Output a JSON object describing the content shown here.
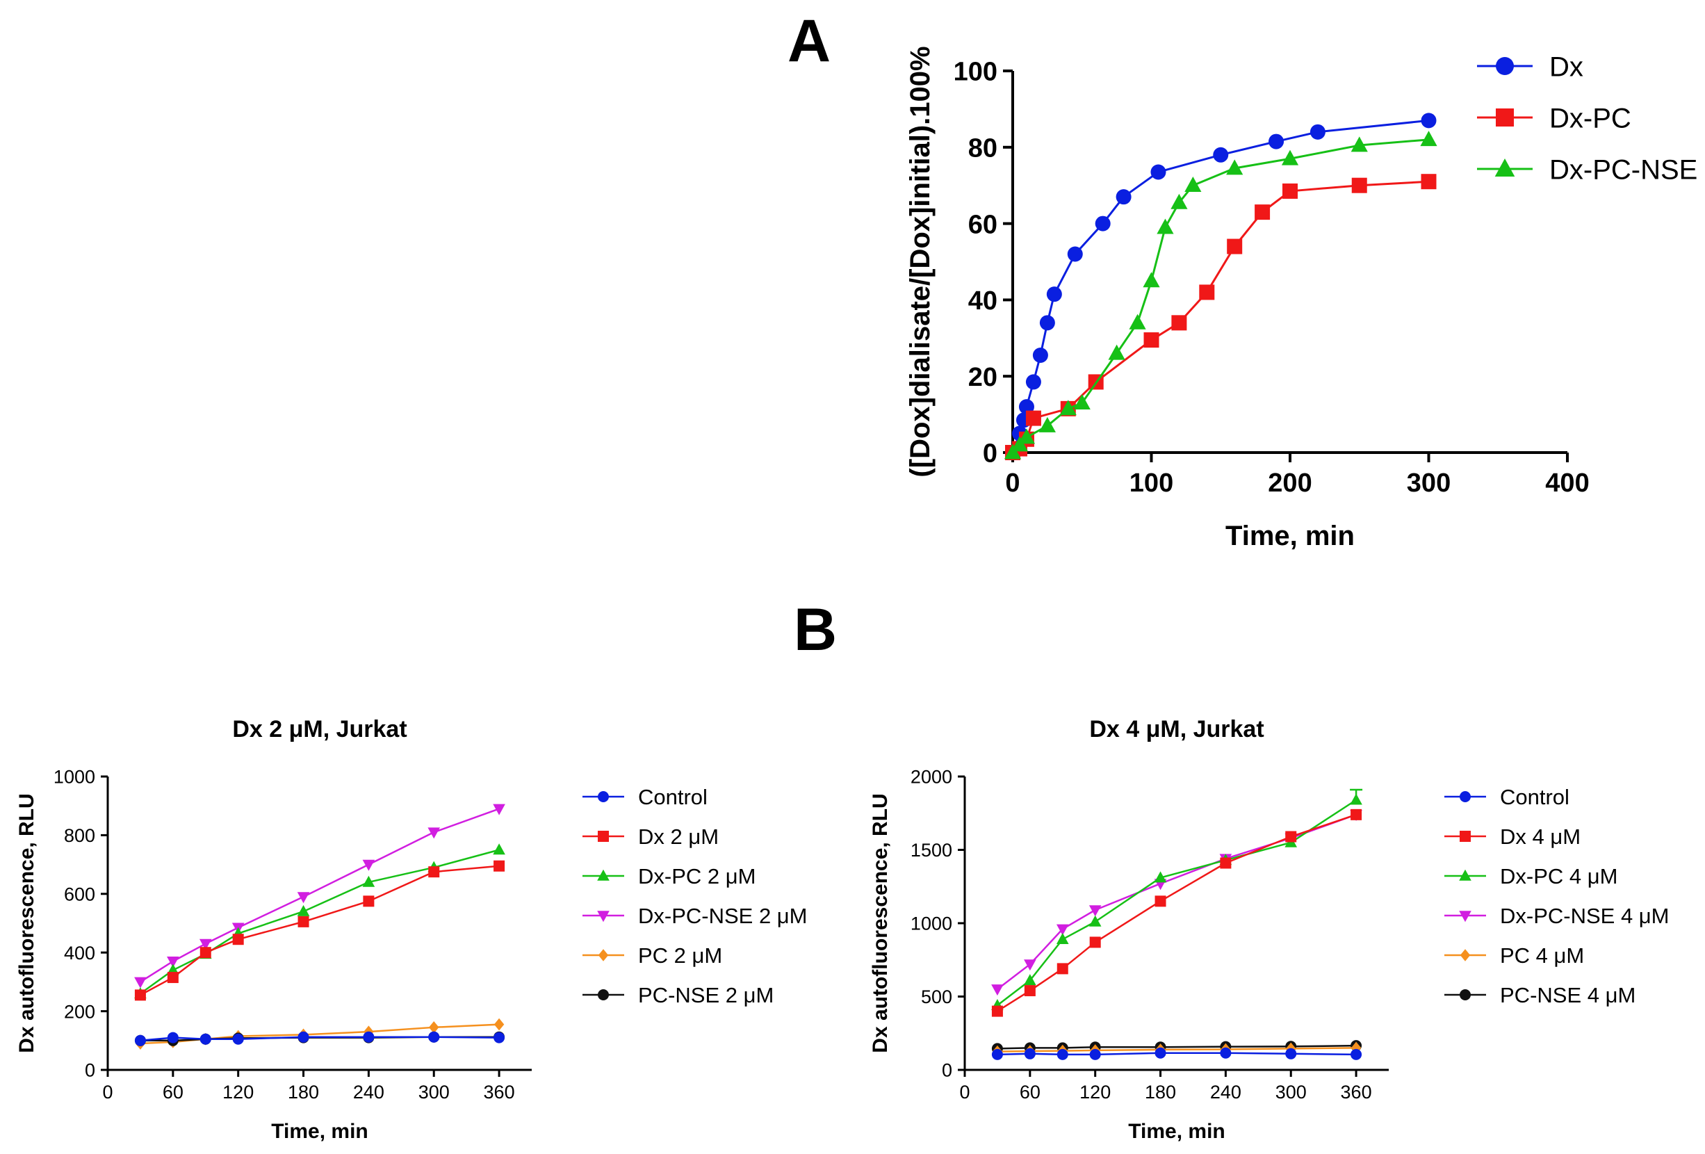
{
  "panel_labels": {
    "a": "A",
    "b": "B"
  },
  "chart_data": [
    {
      "id": "A",
      "type": "line",
      "title": "",
      "xlabel": "Time, min",
      "ylabel": "([Dox]dialisate/[Dox]initial).100%",
      "xlim": [
        0,
        400
      ],
      "ylim": [
        0,
        100
      ],
      "xticks": [
        0,
        100,
        200,
        300,
        400
      ],
      "yticks": [
        0,
        20,
        40,
        60,
        80,
        100
      ],
      "grid": false,
      "legend_position": "right",
      "series": [
        {
          "name": "Dx",
          "color": "#0a1fe0",
          "marker": "circle",
          "x": [
            0,
            5,
            8,
            10,
            15,
            20,
            25,
            30,
            45,
            65,
            80,
            105,
            150,
            190,
            220,
            300
          ],
          "y": [
            0,
            5,
            8.5,
            12,
            18.5,
            25.5,
            34,
            41.5,
            52,
            60,
            67,
            73.5,
            78,
            81.5,
            84,
            87
          ]
        },
        {
          "name": "Dx-PC",
          "color": "#f01818",
          "marker": "square",
          "x": [
            0,
            5,
            10,
            15,
            40,
            60,
            100,
            120,
            140,
            160,
            180,
            200,
            250,
            300
          ],
          "y": [
            0,
            1,
            3.5,
            9,
            11.5,
            18.5,
            29.5,
            34,
            42,
            54,
            63,
            68.5,
            70,
            71
          ]
        },
        {
          "name": "Dx-PC-NSE",
          "color": "#16c016",
          "marker": "triangle",
          "x": [
            0,
            5,
            10,
            25,
            40,
            50,
            75,
            90,
            100,
            110,
            120,
            130,
            160,
            200,
            250,
            300
          ],
          "y": [
            0,
            2,
            4,
            7,
            11.5,
            13,
            26,
            34,
            45,
            59,
            65.5,
            70,
            74.5,
            77,
            80.5,
            82
          ]
        }
      ]
    },
    {
      "id": "B1",
      "type": "line",
      "title": "Dx 2 μM, Jurkat",
      "xlabel": "Time, min",
      "ylabel": "Dx autofluorescence, RLU",
      "xlim": [
        0,
        390
      ],
      "ylim": [
        0,
        1000
      ],
      "xticks": [
        0,
        60,
        120,
        180,
        240,
        300,
        360
      ],
      "yticks": [
        0,
        200,
        400,
        600,
        800,
        1000
      ],
      "grid": false,
      "legend_position": "right",
      "x": [
        30,
        60,
        90,
        120,
        180,
        240,
        300,
        360
      ],
      "series": [
        {
          "name": "Dx-PC-NSE 2 μM",
          "color": "#d11ee0",
          "marker": "triangle-down",
          "legend_order": 3,
          "values": [
            300,
            370,
            430,
            485,
            590,
            700,
            810,
            890
          ]
        },
        {
          "name": "Dx-PC 2 μM",
          "color": "#16c016",
          "marker": "triangle",
          "legend_order": 2,
          "values": [
            260,
            340,
            395,
            465,
            540,
            640,
            690,
            750
          ]
        },
        {
          "name": "Dx 2 μM",
          "color": "#f01818",
          "marker": "square",
          "legend_order": 1,
          "values": [
            255,
            315,
            400,
            445,
            505,
            575,
            675,
            695
          ]
        },
        {
          "name": "PC 2 μM",
          "color": "#f5901e",
          "marker": "diamond",
          "legend_order": 4,
          "values": [
            90,
            95,
            105,
            115,
            120,
            130,
            145,
            155
          ]
        },
        {
          "name": "PC-NSE 2 μM",
          "color": "#111111",
          "marker": "circle",
          "legend_order": 5,
          "values": [
            100,
            100,
            105,
            108,
            110,
            110,
            112,
            112
          ]
        },
        {
          "name": "Control",
          "color": "#0a1fe0",
          "marker": "circle",
          "legend_order": 0,
          "values": [
            100,
            110,
            105,
            105,
            112,
            112,
            112,
            110
          ]
        }
      ]
    },
    {
      "id": "B2",
      "type": "line",
      "title": "Dx 4 μM, Jurkat",
      "xlabel": "Time, min",
      "ylabel": "Dx autofluorescence, RLU",
      "xlim": [
        0,
        390
      ],
      "ylim": [
        0,
        2000
      ],
      "xticks": [
        0,
        60,
        120,
        180,
        240,
        300,
        360
      ],
      "yticks": [
        0,
        500,
        1000,
        1500,
        2000
      ],
      "grid": false,
      "legend_position": "right",
      "x": [
        30,
        60,
        90,
        120,
        180,
        240,
        300,
        360
      ],
      "series": [
        {
          "name": "Dx-PC-NSE 4 μM",
          "color": "#d11ee0",
          "marker": "triangle-down",
          "legend_order": 3,
          "values": [
            550,
            720,
            960,
            1090,
            1270,
            1440,
            1580,
            1740
          ]
        },
        {
          "name": "Dx-PC 4 μM",
          "color": "#16c016",
          "marker": "triangle",
          "legend_order": 2,
          "values": [
            440,
            610,
            890,
            1010,
            1310,
            1430,
            1550,
            1840
          ]
        },
        {
          "name": "Dx 4 μM",
          "color": "#f01818",
          "marker": "square",
          "legend_order": 1,
          "values": [
            400,
            540,
            690,
            870,
            1150,
            1410,
            1590,
            1740
          ]
        },
        {
          "name": "PC-NSE 4 μM",
          "color": "#111111",
          "marker": "circle",
          "legend_order": 5,
          "values": [
            145,
            150,
            150,
            155,
            155,
            158,
            160,
            165
          ]
        },
        {
          "name": "PC 4 μM",
          "color": "#f5901e",
          "marker": "diamond",
          "legend_order": 4,
          "values": [
            125,
            128,
            130,
            133,
            138,
            140,
            145,
            150
          ]
        },
        {
          "name": "Control",
          "color": "#0a1fe0",
          "marker": "circle",
          "legend_order": 0,
          "values": [
            105,
            110,
            105,
            105,
            115,
            115,
            110,
            105
          ]
        }
      ]
    }
  ]
}
